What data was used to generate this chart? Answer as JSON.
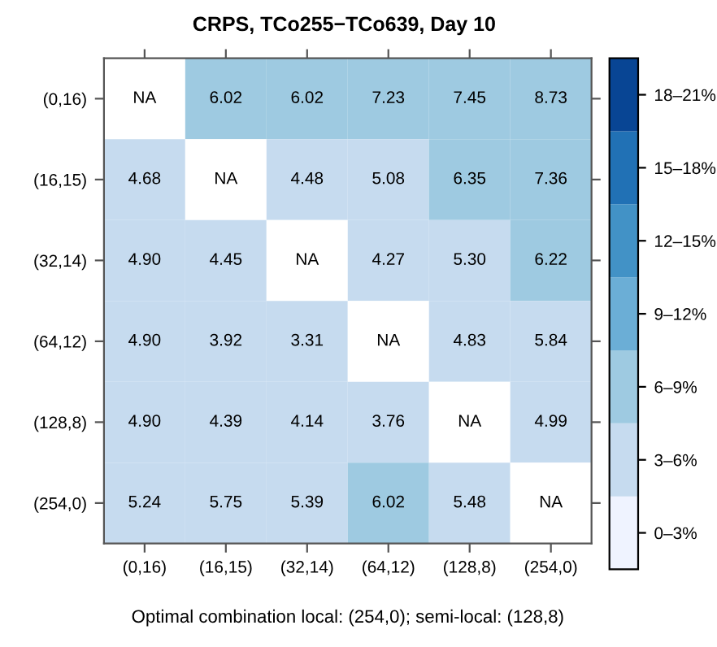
{
  "chart_data": {
    "type": "heatmap",
    "title": "CRPS, TCo255−TCo639, Day 10",
    "categories": [
      "(0,16)",
      "(16,15)",
      "(32,14)",
      "(64,12)",
      "(128,8)",
      "(254,0)"
    ],
    "y_categories": [
      "(0,16)",
      "(16,15)",
      "(32,14)",
      "(64,12)",
      "(128,8)",
      "(254,0)"
    ],
    "cells": [
      [
        null,
        6.02,
        6.02,
        7.23,
        7.45,
        8.73
      ],
      [
        4.68,
        null,
        4.48,
        5.08,
        6.35,
        7.36
      ],
      [
        4.9,
        4.45,
        null,
        4.27,
        5.3,
        6.22
      ],
      [
        4.9,
        3.92,
        3.31,
        null,
        4.83,
        5.84
      ],
      [
        4.9,
        4.39,
        4.14,
        3.76,
        null,
        4.99
      ],
      [
        5.24,
        5.75,
        5.39,
        6.02,
        5.48,
        null
      ]
    ],
    "cell_labels": [
      [
        "NA",
        "6.02",
        "6.02",
        "7.23",
        "7.45",
        "8.73"
      ],
      [
        "4.68",
        "NA",
        "4.48",
        "5.08",
        "6.35",
        "7.36"
      ],
      [
        "4.90",
        "4.45",
        "NA",
        "4.27",
        "5.30",
        "6.22"
      ],
      [
        "4.90",
        "3.92",
        "3.31",
        "NA",
        "4.83",
        "5.84"
      ],
      [
        "4.90",
        "4.39",
        "4.14",
        "3.76",
        "NA",
        "4.99"
      ],
      [
        "5.24",
        "5.75",
        "5.39",
        "6.02",
        "5.48",
        "NA"
      ]
    ],
    "colors": [
      "#eff3ff",
      "#c6dbef",
      "#9ecae1",
      "#6baed6",
      "#4292c6",
      "#2171b5",
      "#084594"
    ],
    "clim": [
      0,
      21
    ],
    "cticks": [
      {
        "value": 1.5,
        "label": "0–3%"
      },
      {
        "value": 4.5,
        "label": "3–6%"
      },
      {
        "value": 7.5,
        "label": "6–9%"
      },
      {
        "value": 10.5,
        "label": "9–12%"
      },
      {
        "value": 13.5,
        "label": "12–15%"
      },
      {
        "value": 16.5,
        "label": "15–18%"
      },
      {
        "value": 19.5,
        "label": "18–21%"
      }
    ],
    "annotations": [
      "Optimal combination local: (254,0); semi-local: (128,8)"
    ]
  }
}
